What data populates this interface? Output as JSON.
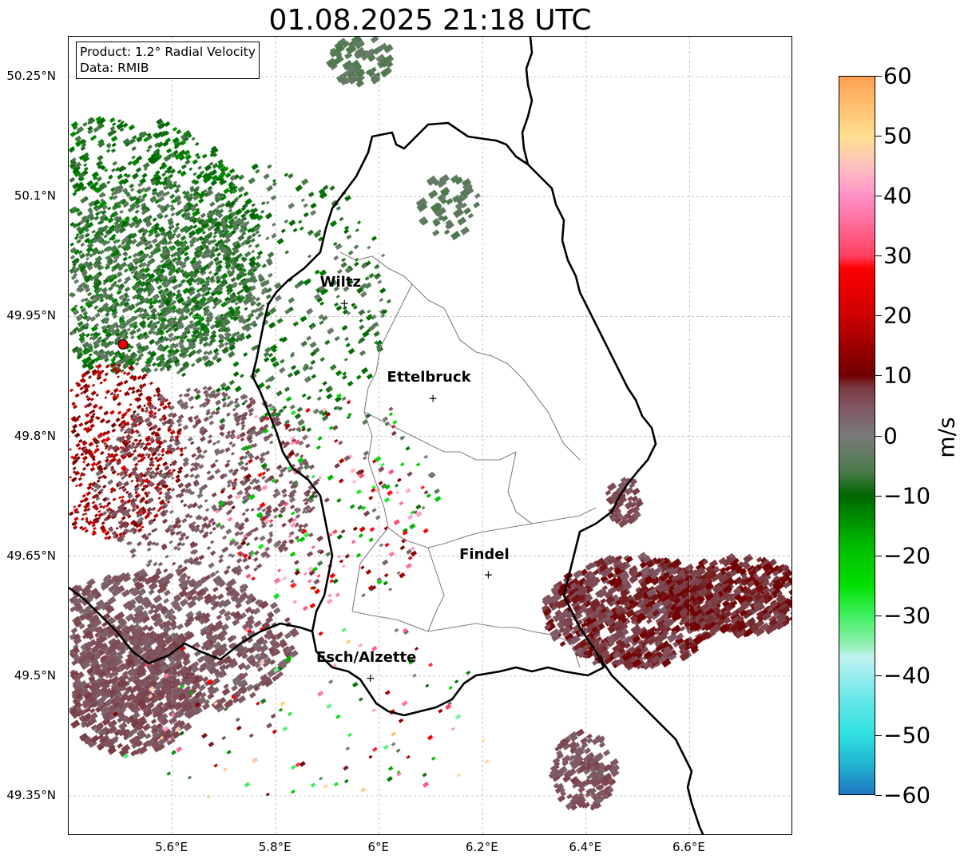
{
  "title": "01.08.2025 21:18 UTC",
  "info": {
    "product": "Product: 1.2° Radial Velocity",
    "data": "Data: RMIB"
  },
  "map": {
    "lon_range": [
      5.4,
      6.8
    ],
    "lat_range": [
      49.3,
      50.3
    ],
    "lat_ticks": [
      {
        "value": 50.25,
        "label": "50.25°N"
      },
      {
        "value": 50.1,
        "label": "50.1°N"
      },
      {
        "value": 49.95,
        "label": "49.95°N"
      },
      {
        "value": 49.8,
        "label": "49.8°N"
      },
      {
        "value": 49.65,
        "label": "49.65°N"
      },
      {
        "value": 49.5,
        "label": "49.5°N"
      },
      {
        "value": 49.35,
        "label": "49.35°N"
      }
    ],
    "lon_ticks": [
      {
        "value": 5.6,
        "label": "5.6°E"
      },
      {
        "value": 5.8,
        "label": "5.8°E"
      },
      {
        "value": 6.0,
        "label": "6°E"
      },
      {
        "value": 6.2,
        "label": "6.2°E"
      },
      {
        "value": 6.4,
        "label": "6.4°E"
      },
      {
        "value": 6.6,
        "label": "6.6°E"
      }
    ],
    "gridlines": true,
    "radar_site": {
      "lon": 5.505,
      "lat": 49.915,
      "color": "#e60000"
    },
    "cities": [
      {
        "name": "Wiltz",
        "lon": 5.933,
        "lat": 49.966
      },
      {
        "name": "Ettelbruck",
        "lon": 6.104,
        "lat": 49.847
      },
      {
        "name": "Findel",
        "lon": 6.211,
        "lat": 49.626
      },
      {
        "name": "Esch/Alzette",
        "lon": 5.983,
        "lat": 49.497
      }
    ],
    "border_color": "#000000",
    "canton_color": "#808080"
  },
  "colorbar": {
    "unit": "m/s",
    "min": -60,
    "max": 60,
    "ticks": [
      {
        "value": 60,
        "label": "60"
      },
      {
        "value": 50,
        "label": "50"
      },
      {
        "value": 40,
        "label": "40"
      },
      {
        "value": 30,
        "label": "30"
      },
      {
        "value": 20,
        "label": "20"
      },
      {
        "value": 10,
        "label": "10"
      },
      {
        "value": 0,
        "label": "0"
      },
      {
        "value": -10,
        "label": "−10"
      },
      {
        "value": -20,
        "label": "−20"
      },
      {
        "value": -30,
        "label": "−30"
      },
      {
        "value": -40,
        "label": "−40"
      },
      {
        "value": -50,
        "label": "−50"
      },
      {
        "value": -60,
        "label": "−60"
      }
    ],
    "stops": [
      {
        "value": -60,
        "color": "#1f77c0"
      },
      {
        "value": -55,
        "color": "#20b4d0"
      },
      {
        "value": -50,
        "color": "#2fe0e0"
      },
      {
        "value": -45,
        "color": "#5ee6e6"
      },
      {
        "value": -40,
        "color": "#9aeeee"
      },
      {
        "value": -37,
        "color": "#c2f2f0"
      },
      {
        "value": -35,
        "color": "#90f0b0"
      },
      {
        "value": -30,
        "color": "#40f060"
      },
      {
        "value": -25,
        "color": "#00e000"
      },
      {
        "value": -18,
        "color": "#00b800"
      },
      {
        "value": -10,
        "color": "#006600"
      },
      {
        "value": -6,
        "color": "#4a7a4a"
      },
      {
        "value": 0,
        "color": "#7a7a7a"
      },
      {
        "value": 5,
        "color": "#805460"
      },
      {
        "value": 8,
        "color": "#7a3a40"
      },
      {
        "value": 10,
        "color": "#700000"
      },
      {
        "value": 20,
        "color": "#cc0000"
      },
      {
        "value": 28,
        "color": "#ff0000"
      },
      {
        "value": 30,
        "color": "#ff4060"
      },
      {
        "value": 40,
        "color": "#ff90c8"
      },
      {
        "value": 45,
        "color": "#ffc0c0"
      },
      {
        "value": 50,
        "color": "#ffe090"
      },
      {
        "value": 60,
        "color": "#ffa050"
      }
    ]
  }
}
